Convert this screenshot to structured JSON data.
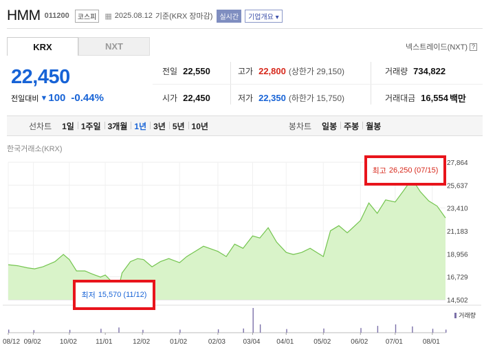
{
  "stock": {
    "name": "HMM",
    "code": "011200",
    "market": "코스피",
    "date": "2025.08.12",
    "basis": "기준(KRX 장마감)",
    "live_label": "실시간",
    "info_label": "기업개요",
    "info_icon": "chevron-down-icon"
  },
  "tabs": [
    {
      "label": "KRX",
      "active": true
    },
    {
      "label": "NXT",
      "active": false
    }
  ],
  "nxt_note": {
    "label": "넥스트레이드(NXT)",
    "help": "?"
  },
  "price": {
    "current": "22,450",
    "change_label": "전일대비",
    "change_icon": "down-triangle-icon",
    "change": "100",
    "change_pct": "-0.44%"
  },
  "stats": {
    "prev_label": "전일",
    "prev": "22,550",
    "high_label": "고가",
    "high": "22,800",
    "upper_limit_label": "상한가",
    "upper_limit": "29,150",
    "volume_label": "거래량",
    "volume": "734,822",
    "open_label": "시가",
    "open": "22,450",
    "low_label": "저가",
    "low": "22,350",
    "lower_limit_label": "하한가",
    "lower_limit": "15,750",
    "turnover_label": "거래대금",
    "turnover": "16,554",
    "turnover_unit": "백만"
  },
  "periods": {
    "line_label": "선차트",
    "line": [
      "1일",
      "1주일",
      "3개월",
      "1년",
      "3년",
      "5년",
      "10년"
    ],
    "selected": "1년",
    "candle_label": "봉차트",
    "candle": [
      "일봉",
      "주봉",
      "월봉"
    ]
  },
  "chart": {
    "exchange_label": "한국거래소(KRX)",
    "volume_label": "거래량",
    "high_annotation": {
      "label": "최고",
      "value": "26,250",
      "date": "(07/15)"
    },
    "low_annotation": {
      "label": "최저",
      "value": "15,570",
      "date": "(11/12)"
    },
    "colors": {
      "line": "#73c44e",
      "fill": "#d9f3c9",
      "high": "#d7281b",
      "low": "#1763d6",
      "callout_border": "#e8141b",
      "volume": "#7a6fa8"
    }
  },
  "chart_data": {
    "type": "area",
    "title": "",
    "xlabel": "",
    "ylabel": "",
    "ylim": [
      14502,
      27864
    ],
    "y_ticks": [
      "27,864",
      "25,637",
      "23,410",
      "21,183",
      "18,956",
      "16,729",
      "14,502"
    ],
    "x_ticks": [
      "08/12",
      "09/02",
      "10/02",
      "11/01",
      "12/02",
      "01/02",
      "02/03",
      "03/04",
      "04/01",
      "05/02",
      "06/02",
      "07/01",
      "08/01"
    ],
    "grid": true,
    "series": [
      {
        "x": [
          "2024-08-12",
          "2024-08-20",
          "2024-08-28",
          "2024-09-03",
          "2024-09-10",
          "2024-09-20",
          "2024-09-27",
          "2024-10-02",
          "2024-10-08",
          "2024-10-15",
          "2024-10-21",
          "2024-10-28",
          "2024-11-01",
          "2024-11-06",
          "2024-11-12",
          "2024-11-15",
          "2024-11-22",
          "2024-11-28",
          "2024-12-03",
          "2024-12-10",
          "2024-12-17",
          "2024-12-24",
          "2025-01-02",
          "2025-01-08",
          "2025-01-15",
          "2025-01-22",
          "2025-02-03",
          "2025-02-10",
          "2025-02-17",
          "2025-02-24",
          "2025-03-04",
          "2025-03-10",
          "2025-03-17",
          "2025-03-24",
          "2025-04-01",
          "2025-04-07",
          "2025-04-14",
          "2025-04-21",
          "2025-05-02",
          "2025-05-08",
          "2025-05-15",
          "2025-05-22",
          "2025-06-02",
          "2025-06-09",
          "2025-06-16",
          "2025-06-23",
          "2025-07-01",
          "2025-07-08",
          "2025-07-15",
          "2025-07-22",
          "2025-07-29",
          "2025-08-05",
          "2025-08-12"
        ],
        "values": [
          17900,
          17800,
          17600,
          17500,
          17700,
          18200,
          18900,
          18400,
          17300,
          17300,
          17000,
          16700,
          16900,
          16300,
          15570,
          17100,
          18200,
          18500,
          18400,
          17700,
          18200,
          18500,
          18100,
          18700,
          19200,
          19700,
          19200,
          18700,
          19900,
          19500,
          20700,
          20500,
          21500,
          20100,
          19100,
          18900,
          19100,
          19500,
          18700,
          21200,
          21700,
          21000,
          22200,
          23900,
          22900,
          24200,
          24000,
          25100,
          26250,
          25000,
          24100,
          23600,
          22450
        ]
      }
    ],
    "volume": {
      "x": [
        "2024-08-12",
        "2024-09-02",
        "2024-10-02",
        "2024-10-28",
        "2024-11-12",
        "2024-12-02",
        "2025-01-02",
        "2025-02-03",
        "2025-02-24",
        "2025-03-04",
        "2025-03-10",
        "2025-04-01",
        "2025-05-02",
        "2025-06-02",
        "2025-06-16",
        "2025-07-01",
        "2025-07-15",
        "2025-08-01",
        "2025-08-12"
      ],
      "values": [
        1.2,
        1.0,
        1.1,
        1.5,
        2.0,
        1.1,
        1.2,
        1.3,
        1.6,
        9.5,
        3.2,
        1.4,
        1.6,
        1.8,
        2.6,
        3.2,
        2.4,
        1.5,
        1.2
      ]
    }
  }
}
